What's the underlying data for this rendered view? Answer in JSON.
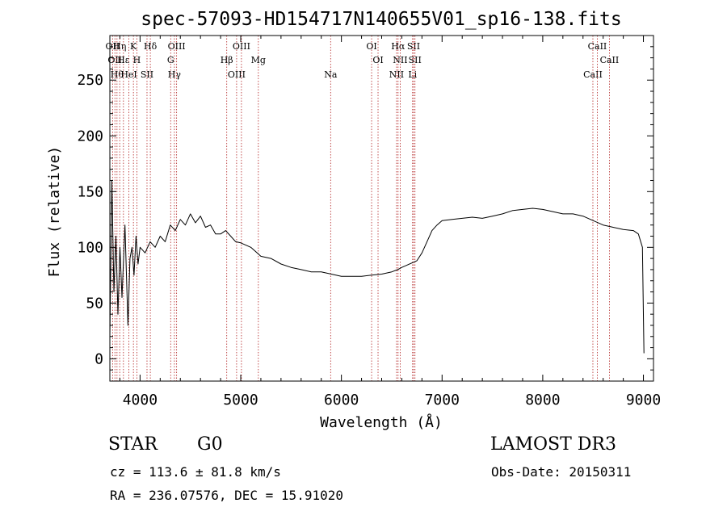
{
  "chart_data": {
    "type": "line",
    "title": "spec-57093-HD154717N140655V01_sp16-138.fits",
    "xlabel": "Wavelength (Å)",
    "ylabel": "Flux (relative)",
    "xlim": [
      3700,
      9100
    ],
    "ylim": [
      -20,
      290
    ],
    "xticks": [
      4000,
      5000,
      6000,
      7000,
      8000,
      9000
    ],
    "yticks": [
      0,
      50,
      100,
      150,
      200,
      250
    ],
    "series": [
      {
        "name": "spectrum",
        "x": [
          3700,
          3720,
          3740,
          3760,
          3780,
          3800,
          3820,
          3850,
          3880,
          3900,
          3920,
          3940,
          3960,
          3980,
          4000,
          4050,
          4100,
          4150,
          4200,
          4250,
          4300,
          4350,
          4400,
          4450,
          4500,
          4550,
          4600,
          4650,
          4700,
          4750,
          4800,
          4850,
          4900,
          4950,
          5000,
          5050,
          5100,
          5150,
          5200,
          5300,
          5400,
          5500,
          5600,
          5700,
          5800,
          5900,
          6000,
          6100,
          6200,
          6300,
          6400,
          6500,
          6560,
          6600,
          6650,
          6700,
          6750,
          6800,
          6850,
          6900,
          6950,
          7000,
          7100,
          7200,
          7300,
          7400,
          7500,
          7600,
          7700,
          7800,
          7900,
          8000,
          8100,
          8200,
          8300,
          8400,
          8500,
          8550,
          8600,
          8700,
          8800,
          8900,
          8950,
          8990,
          9000,
          9005
        ],
        "y": [
          20,
          160,
          60,
          110,
          40,
          100,
          55,
          120,
          30,
          90,
          100,
          75,
          110,
          85,
          100,
          95,
          105,
          100,
          110,
          105,
          120,
          115,
          125,
          120,
          130,
          122,
          128,
          118,
          120,
          112,
          112,
          115,
          110,
          105,
          104,
          102,
          100,
          96,
          92,
          90,
          85,
          82,
          80,
          78,
          78,
          76,
          74,
          74,
          74,
          75,
          76,
          78,
          80,
          82,
          84,
          86,
          88,
          95,
          105,
          115,
          120,
          124,
          125,
          126,
          127,
          126,
          128,
          130,
          133,
          134,
          135,
          134,
          132,
          130,
          130,
          128,
          124,
          122,
          120,
          118,
          116,
          115,
          112,
          100,
          40,
          5
        ]
      }
    ],
    "lines": [
      {
        "wl": 3727,
        "label": "OII"
      },
      {
        "wl": 3750,
        "label": "OII"
      },
      {
        "wl": 3771,
        "label": "Hθ"
      },
      {
        "wl": 3798,
        "label": "Hη"
      },
      {
        "wl": 3835,
        "label": "Hε"
      },
      {
        "wl": 3889,
        "label": "HeI"
      },
      {
        "wl": 3934,
        "label": "K"
      },
      {
        "wl": 3968,
        "label": "H"
      },
      {
        "wl": 4069,
        "label": "SII"
      },
      {
        "wl": 4102,
        "label": "Hδ"
      },
      {
        "wl": 4304,
        "label": "G"
      },
      {
        "wl": 4341,
        "label": "Hγ"
      },
      {
        "wl": 4363,
        "label": "OIII"
      },
      {
        "wl": 4861,
        "label": "Hβ"
      },
      {
        "wl": 4959,
        "label": "OIII"
      },
      {
        "wl": 5007,
        "label": "OIII"
      },
      {
        "wl": 5175,
        "label": "Mg"
      },
      {
        "wl": 5893,
        "label": "Na"
      },
      {
        "wl": 6300,
        "label": "OI"
      },
      {
        "wl": 6364,
        "label": "OI"
      },
      {
        "wl": 6548,
        "label": "NII"
      },
      {
        "wl": 6563,
        "label": "Hα"
      },
      {
        "wl": 6584,
        "label": "NII"
      },
      {
        "wl": 6707,
        "label": "Li"
      },
      {
        "wl": 6717,
        "label": "SII"
      },
      {
        "wl": 6731,
        "label": "SII"
      },
      {
        "wl": 8498,
        "label": "CaII"
      },
      {
        "wl": 8542,
        "label": "CaII"
      },
      {
        "wl": 8662,
        "label": "CaII"
      }
    ]
  },
  "info": {
    "object_class": "STAR",
    "subclass": "G0",
    "survey": "LAMOST DR3",
    "redshift": "cz = 113.6 ± 81.8 km/s",
    "obs_date": "Obs-Date: 20150311",
    "coords": "RA = 236.07576, DEC =  15.91020"
  },
  "colors": {
    "axis": "#000000",
    "spectrum": "#000000",
    "line_marker": "#b22222"
  }
}
